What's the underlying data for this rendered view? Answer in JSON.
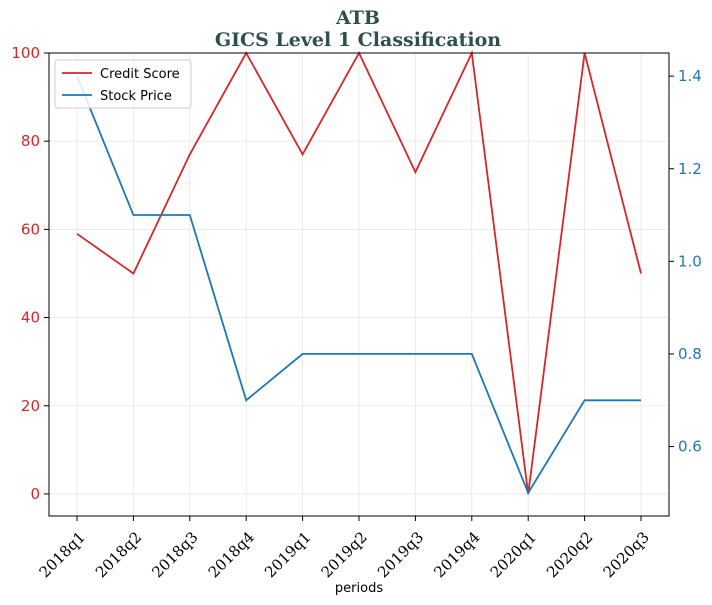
{
  "chart_data": {
    "type": "line",
    "title": "ATB",
    "subtitle": "GICS Level 1 Classification",
    "xlabel": "periods",
    "categories": [
      "2018q1",
      "2018q2",
      "2018q3",
      "2018q4",
      "2019q1",
      "2019q2",
      "2019q3",
      "2019q4",
      "2020q1",
      "2020q2",
      "2020q3"
    ],
    "series": [
      {
        "name": "Credit Score",
        "axis": "left",
        "color": "#d62728",
        "values": [
          59,
          50,
          77,
          100,
          77,
          100,
          73,
          100,
          0,
          100,
          50
        ]
      },
      {
        "name": "Stock Price",
        "axis": "right",
        "color": "#1f77b4",
        "values": [
          1.4,
          1.1,
          1.1,
          0.7,
          0.8,
          0.8,
          0.8,
          0.8,
          0.5,
          0.7,
          0.7
        ]
      }
    ],
    "ylim_left": [
      -5,
      100
    ],
    "yticks_left": [
      0,
      20,
      40,
      60,
      80,
      100
    ],
    "ylim_right": [
      0.45,
      1.45
    ],
    "yticks_right": [
      0.6,
      0.8,
      1.0,
      1.2,
      1.4
    ],
    "grid": true,
    "legend": "top-left"
  }
}
